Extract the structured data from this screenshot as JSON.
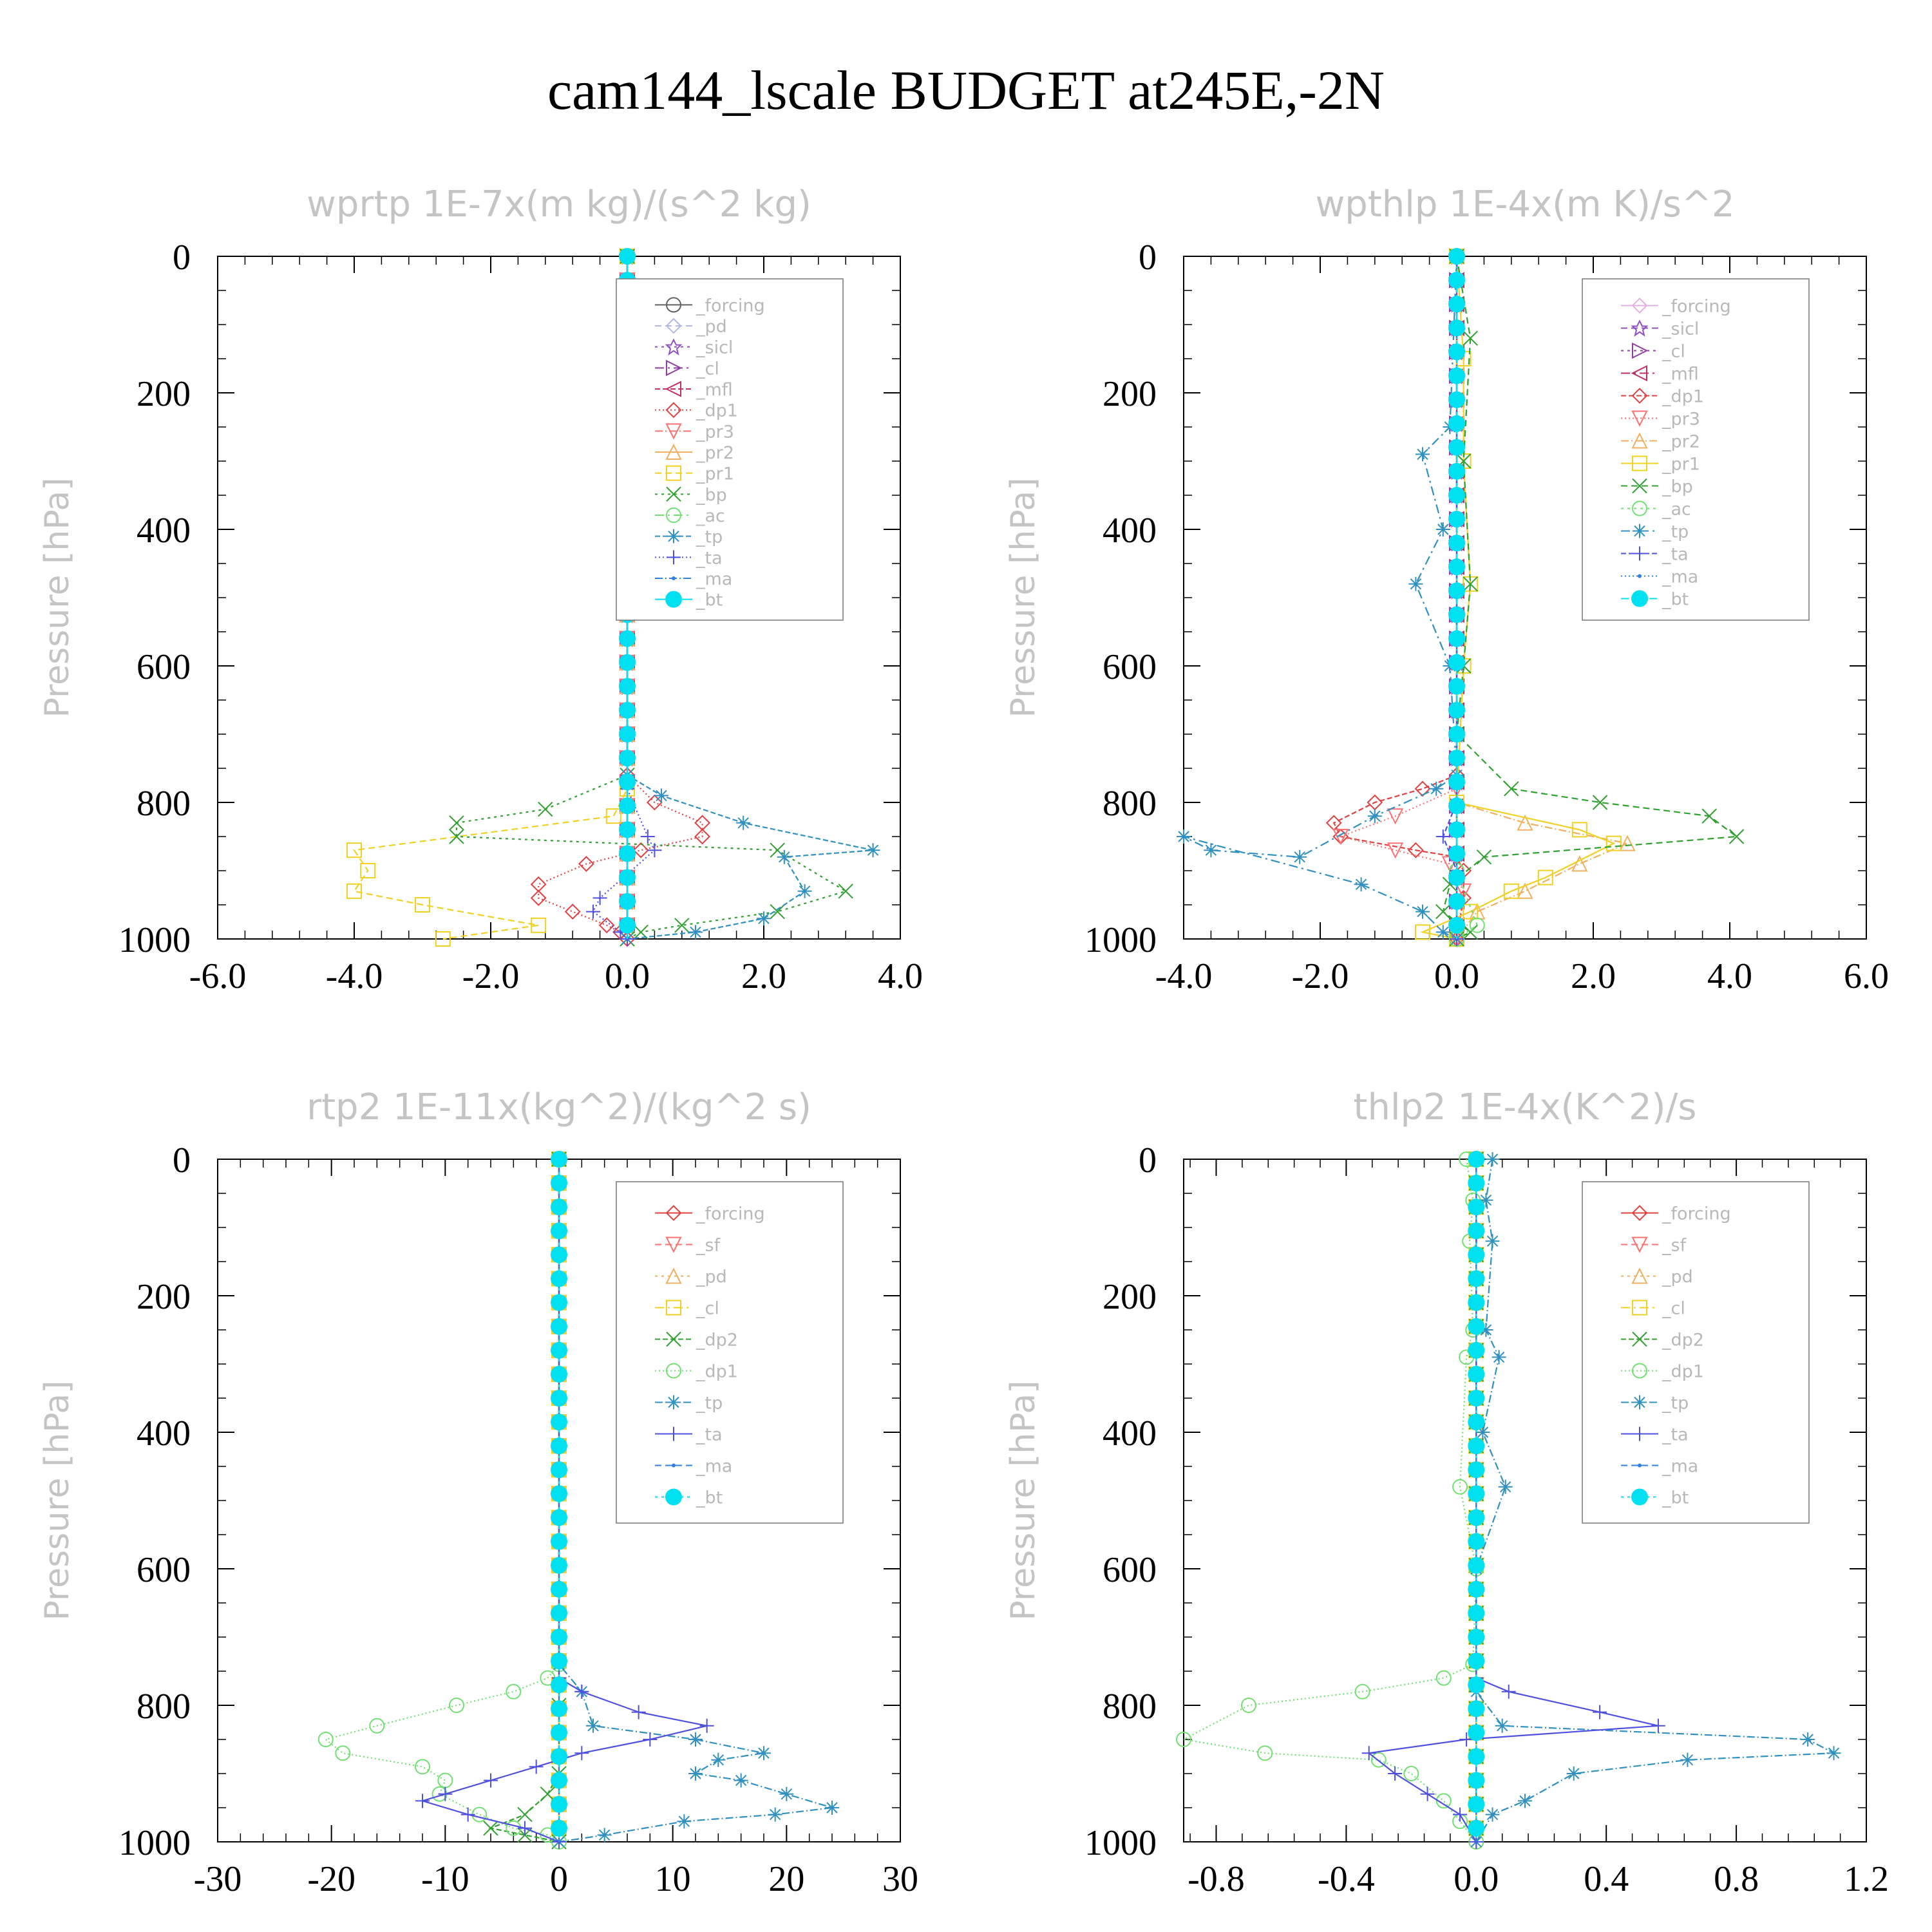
{
  "title": "cam144_lscale  BUDGET at245E,-2N",
  "chart_data": [
    {
      "type": "line",
      "title": "wprtp   1E-7x(m kg)/(s^2 kg)",
      "ylabel": "Pressure [hPa]",
      "xlim": [
        -6,
        4
      ],
      "ylim": [
        1000,
        0
      ],
      "xticks": [
        "-6.0",
        "-4.0",
        "-2.0",
        "0.0",
        "2.0",
        "4.0"
      ],
      "yticks": [
        "0",
        "200",
        "400",
        "600",
        "800",
        "1000"
      ],
      "legend": "upper-right inside",
      "series": [
        {
          "name": "_forcing",
          "color": "#606060",
          "marker": "circle",
          "x": [
            0,
            0
          ],
          "y": [
            0,
            1000
          ]
        },
        {
          "name": "_pd",
          "color": "#b0b8e8",
          "marker": "diamond",
          "x": [
            0,
            0
          ],
          "y": [
            0,
            1000
          ]
        },
        {
          "name": "_sicl",
          "color": "#9050c0",
          "marker": "star",
          "x": [
            0,
            0
          ],
          "y": [
            0,
            1000
          ]
        },
        {
          "name": "_cl",
          "color": "#9040a0",
          "marker": "tri-right",
          "x": [
            0,
            0
          ],
          "y": [
            0,
            1000
          ]
        },
        {
          "name": "_mfl",
          "color": "#c03060",
          "marker": "tri-left",
          "x": [
            0,
            0
          ],
          "y": [
            0,
            1000
          ]
        },
        {
          "name": "_dp1",
          "color": "#e04040",
          "marker": "diamond",
          "x": [
            0,
            0,
            0.4,
            1.1,
            1.1,
            0.2,
            -0.6,
            -1.3,
            -1.3,
            -0.8,
            -0.3,
            -0.1,
            0
          ],
          "y": [
            0,
            760,
            800,
            830,
            850,
            870,
            890,
            920,
            940,
            960,
            980,
            990,
            1000
          ]
        },
        {
          "name": "_pr3",
          "color": "#ff7070",
          "marker": "tri-down",
          "x": [
            0,
            0,
            0,
            0,
            0
          ],
          "y": [
            0,
            760,
            860,
            960,
            1000
          ]
        },
        {
          "name": "_pr2",
          "color": "#f0b060",
          "marker": "tri-up",
          "x": [
            0,
            0,
            0,
            0
          ],
          "y": [
            0,
            780,
            880,
            1000
          ]
        },
        {
          "name": "_pr1",
          "color": "#f0d020",
          "marker": "square",
          "x": [
            0,
            0,
            -0.2,
            -4,
            -3.8,
            -4,
            -3,
            -1.3,
            -2.7
          ],
          "y": [
            0,
            780,
            820,
            870,
            900,
            930,
            950,
            980,
            1000
          ]
        },
        {
          "name": "_bp",
          "color": "#30a030",
          "marker": "x",
          "x": [
            0,
            0,
            -1.2,
            -2.5,
            -2.5,
            2.2,
            3.2,
            2.2,
            0.8,
            0.2,
            0
          ],
          "y": [
            0,
            760,
            810,
            830,
            850,
            870,
            930,
            960,
            980,
            990,
            1000
          ]
        },
        {
          "name": "_ac",
          "color": "#70e070",
          "marker": "circle",
          "x": [
            0,
            0,
            0
          ],
          "y": [
            0,
            900,
            1000
          ]
        },
        {
          "name": "_tp",
          "color": "#3090c0",
          "marker": "asterisk",
          "x": [
            0,
            0,
            0.5,
            1.7,
            3.6,
            2.3,
            2.6,
            2,
            1,
            0
          ],
          "y": [
            0,
            760,
            790,
            830,
            870,
            880,
            930,
            970,
            990,
            1000
          ]
        },
        {
          "name": "_ta",
          "color": "#5050e0",
          "marker": "plus",
          "x": [
            0,
            0,
            0.3,
            0.4,
            -0.4,
            -0.5,
            -0.1,
            0
          ],
          "y": [
            0,
            780,
            850,
            870,
            940,
            960,
            990,
            1000
          ]
        },
        {
          "name": "_ma",
          "color": "#3080e0",
          "marker": "dot",
          "x": [
            0,
            0
          ],
          "y": [
            0,
            1000
          ]
        },
        {
          "name": "_bt",
          "color": "#00e0f0",
          "marker": "bigdot",
          "x": [
            0,
            0
          ],
          "y": [
            0,
            1000
          ]
        }
      ]
    },
    {
      "type": "line",
      "title": "wpthlp   1E-4x(m K)/s^2",
      "ylabel": "Pressure [hPa]",
      "xlim": [
        -4,
        6
      ],
      "ylim": [
        1000,
        0
      ],
      "xticks": [
        "-4.0",
        "-2.0",
        "0.0",
        "2.0",
        "4.0",
        "6.0"
      ],
      "yticks": [
        "0",
        "200",
        "400",
        "600",
        "800",
        "1000"
      ],
      "legend": "upper-right inside",
      "series": [
        {
          "name": "_forcing",
          "color": "#e0b0e0",
          "marker": "diamond",
          "x": [
            0,
            0
          ],
          "y": [
            0,
            1000
          ]
        },
        {
          "name": "_sicl",
          "color": "#9050c0",
          "marker": "star",
          "x": [
            0,
            0
          ],
          "y": [
            0,
            1000
          ]
        },
        {
          "name": "_cl",
          "color": "#9040a0",
          "marker": "tri-right",
          "x": [
            0,
            0
          ],
          "y": [
            0,
            1000
          ]
        },
        {
          "name": "_mfl",
          "color": "#c03060",
          "marker": "tri-left",
          "x": [
            0,
            0
          ],
          "y": [
            0,
            1000
          ]
        },
        {
          "name": "_dp1",
          "color": "#e04040",
          "marker": "diamond",
          "x": [
            0,
            0,
            -0.5,
            -1.2,
            -1.8,
            -1.7,
            -0.6,
            0,
            0.1,
            0.1,
            0
          ],
          "y": [
            0,
            760,
            780,
            800,
            830,
            850,
            870,
            880,
            900,
            940,
            1000
          ]
        },
        {
          "name": "_pr3",
          "color": "#ff7070",
          "marker": "tri-down",
          "x": [
            0,
            0,
            -0.9,
            -1.7,
            -0.9,
            -0.1,
            0.1,
            0
          ],
          "y": [
            0,
            780,
            820,
            850,
            870,
            890,
            930,
            1000
          ]
        },
        {
          "name": "_pr2",
          "color": "#f0b060",
          "marker": "tri-up",
          "x": [
            0,
            0,
            1,
            2.5,
            1.8,
            1,
            0.3,
            0
          ],
          "y": [
            0,
            800,
            830,
            860,
            890,
            930,
            960,
            1000
          ]
        },
        {
          "name": "_pr1",
          "color": "#f0d020",
          "marker": "square",
          "x": [
            0,
            0.1,
            0.1,
            0.2,
            0.1,
            0,
            1.8,
            2.3,
            1.3,
            0.8,
            0.2,
            -0.5,
            0
          ],
          "y": [
            0,
            150,
            300,
            480,
            600,
            800,
            840,
            860,
            910,
            930,
            960,
            990,
            1000
          ]
        },
        {
          "name": "_bp",
          "color": "#30a030",
          "marker": "x",
          "x": [
            0,
            0.2,
            0.1,
            0.2,
            0.1,
            0,
            0.8,
            2.1,
            3.7,
            4.1,
            0.4,
            -0.1,
            -0.2,
            0.2,
            0
          ],
          "y": [
            0,
            120,
            300,
            480,
            600,
            700,
            780,
            800,
            820,
            850,
            880,
            920,
            960,
            990,
            1000
          ]
        },
        {
          "name": "_ac",
          "color": "#70e070",
          "marker": "circle",
          "x": [
            0,
            0,
            0.3,
            0
          ],
          "y": [
            0,
            900,
            980,
            1000
          ]
        },
        {
          "name": "_tp",
          "color": "#3090c0",
          "marker": "asterisk",
          "x": [
            0,
            -0.1,
            -0.5,
            -0.2,
            -0.6,
            -0.1,
            0,
            -0.3,
            -1.2,
            -2.3,
            -3.6,
            -4,
            -1.4,
            -0.5,
            -0.2,
            0
          ],
          "y": [
            0,
            250,
            290,
            400,
            480,
            600,
            760,
            780,
            820,
            880,
            870,
            850,
            920,
            960,
            990,
            1000
          ]
        },
        {
          "name": "_ta",
          "color": "#5050e0",
          "marker": "plus",
          "x": [
            0,
            0,
            -0.2,
            0,
            0
          ],
          "y": [
            0,
            800,
            850,
            900,
            1000
          ]
        },
        {
          "name": "_ma",
          "color": "#3080e0",
          "marker": "dot",
          "x": [
            0,
            0
          ],
          "y": [
            0,
            1000
          ]
        },
        {
          "name": "_bt",
          "color": "#00e0f0",
          "marker": "bigdot",
          "x": [
            0,
            0
          ],
          "y": [
            0,
            1000
          ]
        }
      ]
    },
    {
      "type": "line",
      "title": "rtp2   1E-11x(kg^2)/(kg^2 s)",
      "ylabel": "Pressure [hPa]",
      "xlim": [
        -30,
        30
      ],
      "ylim": [
        1000,
        0
      ],
      "xticks": [
        "-30",
        "-20",
        "-10",
        "0",
        "10",
        "20",
        "30"
      ],
      "yticks": [
        "0",
        "200",
        "400",
        "600",
        "800",
        "1000"
      ],
      "legend": "upper-right inside",
      "series": [
        {
          "name": "_forcing",
          "color": "#e04040",
          "marker": "diamond",
          "x": [
            0,
            0
          ],
          "y": [
            0,
            1000
          ]
        },
        {
          "name": "_sf",
          "color": "#ff7070",
          "marker": "tri-down",
          "x": [
            0,
            0
          ],
          "y": [
            0,
            1000
          ]
        },
        {
          "name": "_pd",
          "color": "#f0b060",
          "marker": "tri-up",
          "x": [
            0,
            0
          ],
          "y": [
            0,
            1000
          ]
        },
        {
          "name": "_cl",
          "color": "#f0d020",
          "marker": "square",
          "x": [
            0,
            0
          ],
          "y": [
            0,
            1000
          ]
        },
        {
          "name": "_dp2",
          "color": "#30a030",
          "marker": "x",
          "x": [
            0,
            0,
            0,
            -1,
            -3,
            -6,
            -3,
            0
          ],
          "y": [
            0,
            800,
            900,
            930,
            960,
            980,
            990,
            1000
          ]
        },
        {
          "name": "_dp1",
          "color": "#70e070",
          "marker": "circle",
          "x": [
            0,
            0,
            -1,
            -4,
            -9,
            -16,
            -20.5,
            -19,
            -12,
            -10,
            -10.5,
            -7,
            -4,
            -1,
            0
          ],
          "y": [
            0,
            740,
            760,
            780,
            800,
            830,
            850,
            870,
            890,
            910,
            930,
            960,
            980,
            990,
            1000
          ]
        },
        {
          "name": "_tp",
          "color": "#3090c0",
          "marker": "asterisk",
          "x": [
            0,
            0,
            2,
            3,
            12,
            18,
            14,
            12,
            16,
            20,
            24,
            19,
            11,
            4,
            0
          ],
          "y": [
            0,
            740,
            780,
            830,
            850,
            870,
            880,
            900,
            910,
            930,
            950,
            960,
            970,
            990,
            1000
          ]
        },
        {
          "name": "_ta",
          "color": "#5050e0",
          "marker": "plus",
          "x": [
            0,
            0,
            2,
            7,
            13,
            8,
            2,
            -2,
            -6,
            -10,
            -12,
            -8,
            -3,
            0
          ],
          "y": [
            0,
            760,
            780,
            810,
            830,
            850,
            870,
            890,
            910,
            930,
            940,
            960,
            980,
            1000
          ]
        },
        {
          "name": "_ma",
          "color": "#3080e0",
          "marker": "dot",
          "x": [
            0,
            0
          ],
          "y": [
            0,
            1000
          ]
        },
        {
          "name": "_bt",
          "color": "#00e0f0",
          "marker": "bigdot",
          "x": [
            0,
            0
          ],
          "y": [
            0,
            1000
          ]
        }
      ]
    },
    {
      "type": "line",
      "title": "thlp2   1E-4x(K^2)/s",
      "ylabel": "Pressure [hPa]",
      "xlim": [
        -0.9,
        1.2
      ],
      "ylim": [
        1000,
        0
      ],
      "xticks": [
        "-0.8",
        "-0.4",
        "0.0",
        "0.4",
        "0.8",
        "1.2"
      ],
      "yticks": [
        "0",
        "200",
        "400",
        "600",
        "800",
        "1000"
      ],
      "legend": "upper-right inside",
      "series": [
        {
          "name": "_forcing",
          "color": "#e04040",
          "marker": "diamond",
          "x": [
            0,
            0
          ],
          "y": [
            0,
            1000
          ]
        },
        {
          "name": "_sf",
          "color": "#ff7070",
          "marker": "tri-down",
          "x": [
            0,
            0
          ],
          "y": [
            0,
            1000
          ]
        },
        {
          "name": "_pd",
          "color": "#f0b060",
          "marker": "tri-up",
          "x": [
            0,
            0
          ],
          "y": [
            0,
            1000
          ]
        },
        {
          "name": "_cl",
          "color": "#f0d020",
          "marker": "square",
          "x": [
            0,
            0
          ],
          "y": [
            0,
            1000
          ]
        },
        {
          "name": "_dp2",
          "color": "#30a030",
          "marker": "x",
          "x": [
            0,
            0
          ],
          "y": [
            0,
            1000
          ]
        },
        {
          "name": "_dp1",
          "color": "#70e070",
          "marker": "circle",
          "x": [
            -0.03,
            -0.01,
            -0.02,
            -0.01,
            -0.03,
            -0.05,
            0,
            -0.01,
            -0.1,
            -0.35,
            -0.7,
            -0.9,
            -0.65,
            -0.3,
            -0.2,
            -0.1,
            -0.05,
            0
          ],
          "y": [
            0,
            60,
            120,
            250,
            290,
            480,
            600,
            740,
            760,
            780,
            800,
            850,
            870,
            880,
            900,
            940,
            970,
            1000
          ]
        },
        {
          "name": "_tp",
          "color": "#3090c0",
          "marker": "asterisk",
          "x": [
            0.05,
            0.03,
            0.05,
            0.03,
            0.07,
            0.02,
            0.09,
            0,
            0,
            0.08,
            1.02,
            1.1,
            0.65,
            0.3,
            0.15,
            0.05,
            0
          ],
          "y": [
            0,
            60,
            120,
            250,
            290,
            400,
            480,
            600,
            780,
            830,
            850,
            870,
            880,
            900,
            940,
            960,
            1000
          ]
        },
        {
          "name": "_ta",
          "color": "#5050e0",
          "marker": "plus",
          "x": [
            0,
            0,
            0.1,
            0.38,
            0.56,
            -0.03,
            -0.33,
            -0.25,
            -0.15,
            -0.05,
            0
          ],
          "y": [
            0,
            760,
            780,
            810,
            830,
            850,
            870,
            900,
            930,
            960,
            1000
          ]
        },
        {
          "name": "_ma",
          "color": "#3080e0",
          "marker": "dot",
          "x": [
            0,
            0
          ],
          "y": [
            0,
            1000
          ]
        },
        {
          "name": "_bt",
          "color": "#00e0f0",
          "marker": "bigdot",
          "x": [
            0,
            0
          ],
          "y": [
            0,
            1000
          ]
        }
      ]
    }
  ]
}
